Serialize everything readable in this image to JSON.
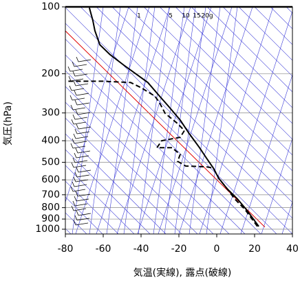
{
  "chart_data": {
    "type": "line",
    "x_label": "気温(実線), 露点(破線)",
    "y_label": "気圧(hPa)",
    "xlim": [
      -80,
      40
    ],
    "xticks": [
      -80,
      -60,
      -40,
      -20,
      0,
      20,
      40
    ],
    "ylim": [
      1050,
      100
    ],
    "yticks": [
      100,
      200,
      300,
      400,
      500,
      600,
      700,
      800,
      900,
      1000
    ],
    "log_y": true,
    "grid": true,
    "annotations": [
      "1",
      "5",
      "10",
      "15",
      "20g"
    ],
    "series": [
      {
        "style": "solid",
        "color": "#000000",
        "x": [
          22.2,
          15.6,
          10.9,
          5.5,
          1.1,
          -1.8,
          -5.5,
          -9.1,
          -14.5,
          -19.3,
          -25.5,
          -30.2,
          -36.4,
          -41.8,
          -49.1,
          -56.4,
          -61.8,
          -64.4,
          -65.5,
          -67.3
        ],
        "y": [
          972,
          815,
          731,
          658,
          591,
          531,
          478,
          430,
          372,
          323,
          280,
          252,
          219,
          203,
          183,
          164,
          148,
          128,
          115,
          101
        ]
      },
      {
        "style": "dashed",
        "color": "#000000",
        "x": [
          21.5,
          14.9,
          9.5,
          5.5,
          1.1,
          -1.8,
          -5.5,
          -16.4,
          -20.7,
          -19.3,
          -23.6,
          -31.6,
          -29.1,
          -19.3,
          -17.1,
          -20.7,
          -27.3,
          -30.2,
          -32.7,
          -40,
          -45.5,
          -60,
          -80
        ],
        "y": [
          972,
          815,
          731,
          658,
          591,
          531,
          524,
          520,
          495,
          461,
          430,
          430,
          400,
          386,
          360,
          335,
          301,
          270,
          252,
          231,
          219,
          216,
          216
        ]
      }
    ]
  }
}
